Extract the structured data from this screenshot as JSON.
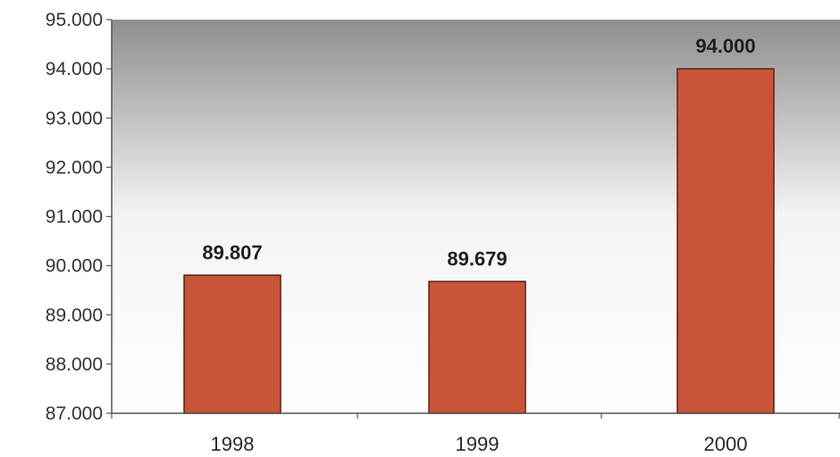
{
  "chart_data": {
    "type": "bar",
    "categories": [
      "1998",
      "1999",
      "2000"
    ],
    "values": [
      89807,
      89679,
      94000
    ],
    "data_labels": [
      "89.807",
      "89.679",
      "94.000"
    ],
    "y_tick_labels": [
      "87.000",
      "88.000",
      "89.000",
      "90.000",
      "91.000",
      "92.000",
      "93.000",
      "94.000",
      "95.000"
    ],
    "y_ticks": [
      87000,
      88000,
      89000,
      90000,
      91000,
      92000,
      93000,
      94000,
      95000
    ],
    "ylim": [
      87000,
      95000
    ],
    "title": "",
    "xlabel": "",
    "ylabel": "",
    "grid": false,
    "legend": "none",
    "colors": {
      "bar_fill": "#c8553a",
      "bar_stroke": "#5a2015",
      "plot_bg_top": "#8e8e8e",
      "plot_bg_bottom": "#ffffff",
      "axis": "#555555"
    }
  }
}
